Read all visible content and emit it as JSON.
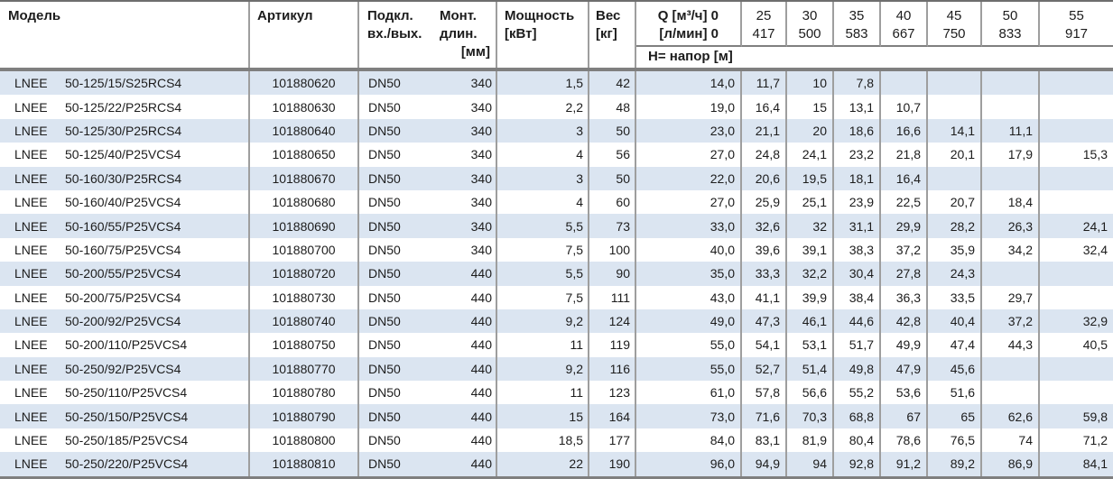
{
  "header": {
    "model": "Модель",
    "article": "Артикул",
    "connection_line1": "Подкл.",
    "connection_line2": "вх./вых.",
    "mount_line1": "Монт.",
    "mount_line2": "длин.",
    "mount_line3": "[мм]",
    "power_line1": "Мощность",
    "power_line2": "[кВт]",
    "weight_line1": "Вес",
    "weight_line2": "[кг]",
    "q_line1": "Q [м³/ч] 0",
    "q_line2": "[л/мин] 0",
    "flow_m3h": [
      "25",
      "30",
      "35",
      "40",
      "45",
      "50",
      "55"
    ],
    "flow_lmin": [
      "417",
      "500",
      "583",
      "667",
      "750",
      "833",
      "917"
    ],
    "head_label": "H= напор [м]"
  },
  "table": {
    "rows": [
      {
        "brand": "LNEE",
        "model": "50-125/15/S25RCS4",
        "article": "101880620",
        "connection": "DN50",
        "mount": "340",
        "power": "1,5",
        "weight": "42",
        "head": [
          "14,0",
          "11,7",
          "10",
          "7,8",
          "",
          "",
          "",
          ""
        ]
      },
      {
        "brand": "LNEE",
        "model": "50-125/22/P25RCS4",
        "article": "101880630",
        "connection": "DN50",
        "mount": "340",
        "power": "2,2",
        "weight": "48",
        "head": [
          "19,0",
          "16,4",
          "15",
          "13,1",
          "10,7",
          "",
          "",
          ""
        ]
      },
      {
        "brand": "LNEE",
        "model": "50-125/30/P25RCS4",
        "article": "101880640",
        "connection": "DN50",
        "mount": "340",
        "power": "3",
        "weight": "50",
        "head": [
          "23,0",
          "21,1",
          "20",
          "18,6",
          "16,6",
          "14,1",
          "11,1",
          ""
        ]
      },
      {
        "brand": "LNEE",
        "model": "50-125/40/P25VCS4",
        "article": "101880650",
        "connection": "DN50",
        "mount": "340",
        "power": "4",
        "weight": "56",
        "head": [
          "27,0",
          "24,8",
          "24,1",
          "23,2",
          "21,8",
          "20,1",
          "17,9",
          "15,3"
        ]
      },
      {
        "brand": "LNEE",
        "model": "50-160/30/P25RCS4",
        "article": "101880670",
        "connection": "DN50",
        "mount": "340",
        "power": "3",
        "weight": "50",
        "head": [
          "22,0",
          "20,6",
          "19,5",
          "18,1",
          "16,4",
          "",
          "",
          ""
        ]
      },
      {
        "brand": "LNEE",
        "model": "50-160/40/P25VCS4",
        "article": "101880680",
        "connection": "DN50",
        "mount": "340",
        "power": "4",
        "weight": "60",
        "head": [
          "27,0",
          "25,9",
          "25,1",
          "23,9",
          "22,5",
          "20,7",
          "18,4",
          ""
        ]
      },
      {
        "brand": "LNEE",
        "model": "50-160/55/P25VCS4",
        "article": "101880690",
        "connection": "DN50",
        "mount": "340",
        "power": "5,5",
        "weight": "73",
        "head": [
          "33,0",
          "32,6",
          "32",
          "31,1",
          "29,9",
          "28,2",
          "26,3",
          "24,1"
        ]
      },
      {
        "brand": "LNEE",
        "model": "50-160/75/P25VCS4",
        "article": "101880700",
        "connection": "DN50",
        "mount": "340",
        "power": "7,5",
        "weight": "100",
        "head": [
          "40,0",
          "39,6",
          "39,1",
          "38,3",
          "37,2",
          "35,9",
          "34,2",
          "32,4"
        ]
      },
      {
        "brand": "LNEE",
        "model": "50-200/55/P25VCS4",
        "article": "101880720",
        "connection": "DN50",
        "mount": "440",
        "power": "5,5",
        "weight": "90",
        "head": [
          "35,0",
          "33,3",
          "32,2",
          "30,4",
          "27,8",
          "24,3",
          "",
          ""
        ]
      },
      {
        "brand": "LNEE",
        "model": "50-200/75/P25VCS4",
        "article": "101880730",
        "connection": "DN50",
        "mount": "440",
        "power": "7,5",
        "weight": "111",
        "head": [
          "43,0",
          "41,1",
          "39,9",
          "38,4",
          "36,3",
          "33,5",
          "29,7",
          ""
        ]
      },
      {
        "brand": "LNEE",
        "model": "50-200/92/P25VCS4",
        "article": "101880740",
        "connection": "DN50",
        "mount": "440",
        "power": "9,2",
        "weight": "124",
        "head": [
          "49,0",
          "47,3",
          "46,1",
          "44,6",
          "42,8",
          "40,4",
          "37,2",
          "32,9"
        ]
      },
      {
        "brand": "LNEE",
        "model": "50-200/110/P25VCS4",
        "article": "101880750",
        "connection": "DN50",
        "mount": "440",
        "power": "11",
        "weight": "119",
        "head": [
          "55,0",
          "54,1",
          "53,1",
          "51,7",
          "49,9",
          "47,4",
          "44,3",
          "40,5"
        ]
      },
      {
        "brand": "LNEE",
        "model": "50-250/92/P25VCS4",
        "article": "101880770",
        "connection": "DN50",
        "mount": "440",
        "power": "9,2",
        "weight": "116",
        "head": [
          "55,0",
          "52,7",
          "51,4",
          "49,8",
          "47,9",
          "45,6",
          "",
          ""
        ]
      },
      {
        "brand": "LNEE",
        "model": "50-250/110/P25VCS4",
        "article": "101880780",
        "connection": "DN50",
        "mount": "440",
        "power": "11",
        "weight": "123",
        "head": [
          "61,0",
          "57,8",
          "56,6",
          "55,2",
          "53,6",
          "51,6",
          "",
          ""
        ]
      },
      {
        "brand": "LNEE",
        "model": "50-250/150/P25VCS4",
        "article": "101880790",
        "connection": "DN50",
        "mount": "440",
        "power": "15",
        "weight": "164",
        "head": [
          "73,0",
          "71,6",
          "70,3",
          "68,8",
          "67",
          "65",
          "62,6",
          "59,8"
        ]
      },
      {
        "brand": "LNEE",
        "model": "50-250/185/P25VCS4",
        "article": "101880800",
        "connection": "DN50",
        "mount": "440",
        "power": "18,5",
        "weight": "177",
        "head": [
          "84,0",
          "83,1",
          "81,9",
          "80,4",
          "78,6",
          "76,5",
          "74",
          "71,2"
        ]
      },
      {
        "brand": "LNEE",
        "model": "50-250/220/P25VCS4",
        "article": "101880810",
        "connection": "DN50",
        "mount": "440",
        "power": "22",
        "weight": "190",
        "head": [
          "96,0",
          "94,9",
          "94",
          "92,8",
          "91,2",
          "89,2",
          "86,9",
          "84,1"
        ]
      }
    ]
  },
  "colors": {
    "row_alt": "#dbe5f1",
    "border": "#9e9e9e",
    "thick_border": "#7f7f7f",
    "text": "#1c1c1c",
    "background": "#ffffff"
  }
}
